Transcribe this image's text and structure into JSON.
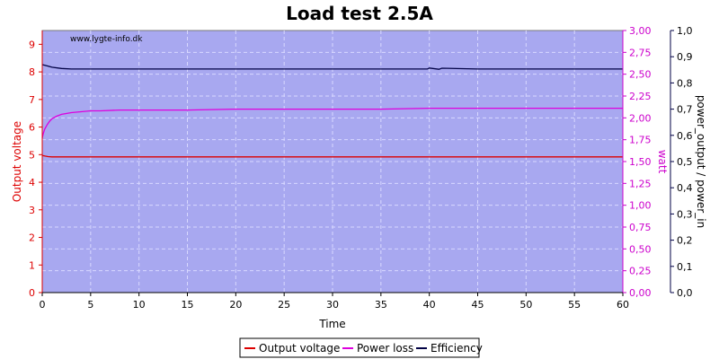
{
  "chart_data": {
    "type": "line",
    "title": "Load test 2.5A",
    "watermark": "www.lygte-info.dk",
    "xlabel": "Time",
    "xlim": [
      0,
      60
    ],
    "xticks": [
      "0",
      "5",
      "10",
      "15",
      "20",
      "25",
      "30",
      "35",
      "40",
      "45",
      "50",
      "55",
      "60"
    ],
    "axes": {
      "left": {
        "label": "Output voltage",
        "lim": [
          0,
          9.5
        ],
        "color": "#dd0000",
        "ticks": [
          "0",
          "1",
          "2",
          "3",
          "4",
          "5",
          "6",
          "7",
          "8",
          "9"
        ]
      },
      "right1": {
        "label": "watt",
        "lim": [
          0,
          3.0
        ],
        "color": "#cc00cc",
        "ticks": [
          "0,00",
          "0,25",
          "0,50",
          "0,75",
          "1,00",
          "1,25",
          "1,50",
          "1,75",
          "2,00",
          "2,25",
          "2,50",
          "2,75",
          "3,00"
        ]
      },
      "right2": {
        "label": "power_output / power_in",
        "lim": [
          0,
          1.0
        ],
        "color": "#000044",
        "ticks": [
          "0,0",
          "0,1",
          "0,2",
          "0,3",
          "0,4",
          "0,5",
          "0,6",
          "0,7",
          "0,8",
          "0,9",
          "1,0"
        ]
      }
    },
    "series": [
      {
        "name": "Output voltage",
        "axis": "left",
        "color": "#dd0000",
        "x": [
          0,
          0.3,
          0.6,
          1,
          2,
          5,
          10,
          20,
          30,
          40,
          50,
          60
        ],
        "y": [
          4.97,
          4.95,
          4.93,
          4.92,
          4.92,
          4.92,
          4.92,
          4.92,
          4.92,
          4.92,
          4.92,
          4.92
        ]
      },
      {
        "name": "Power loss",
        "axis": "right1",
        "color": "#dd00dd",
        "x": [
          0,
          0.1,
          0.25,
          0.5,
          0.75,
          1,
          1.5,
          2,
          3,
          4,
          5,
          6,
          8,
          10,
          15,
          20,
          25,
          30,
          35,
          40,
          45,
          50,
          55,
          60
        ],
        "y": [
          1.77,
          1.82,
          1.87,
          1.92,
          1.96,
          1.99,
          2.02,
          2.04,
          2.06,
          2.07,
          2.08,
          2.08,
          2.09,
          2.09,
          2.09,
          2.1,
          2.1,
          2.1,
          2.1,
          2.11,
          2.11,
          2.11,
          2.11,
          2.11
        ]
      },
      {
        "name": "Efficiency",
        "axis": "right2",
        "color": "#000044",
        "x": [
          0,
          0.5,
          1,
          2,
          3,
          5,
          10,
          20,
          30,
          39.8,
          40,
          41,
          41.3,
          45,
          50,
          55,
          60
        ],
        "y": [
          0.87,
          0.865,
          0.86,
          0.855,
          0.853,
          0.853,
          0.853,
          0.853,
          0.853,
          0.853,
          0.857,
          0.852,
          0.856,
          0.853,
          0.853,
          0.853,
          0.853
        ]
      }
    ],
    "grid": true,
    "legend": "bottom-center",
    "plot_background": "#a8a8f0"
  }
}
